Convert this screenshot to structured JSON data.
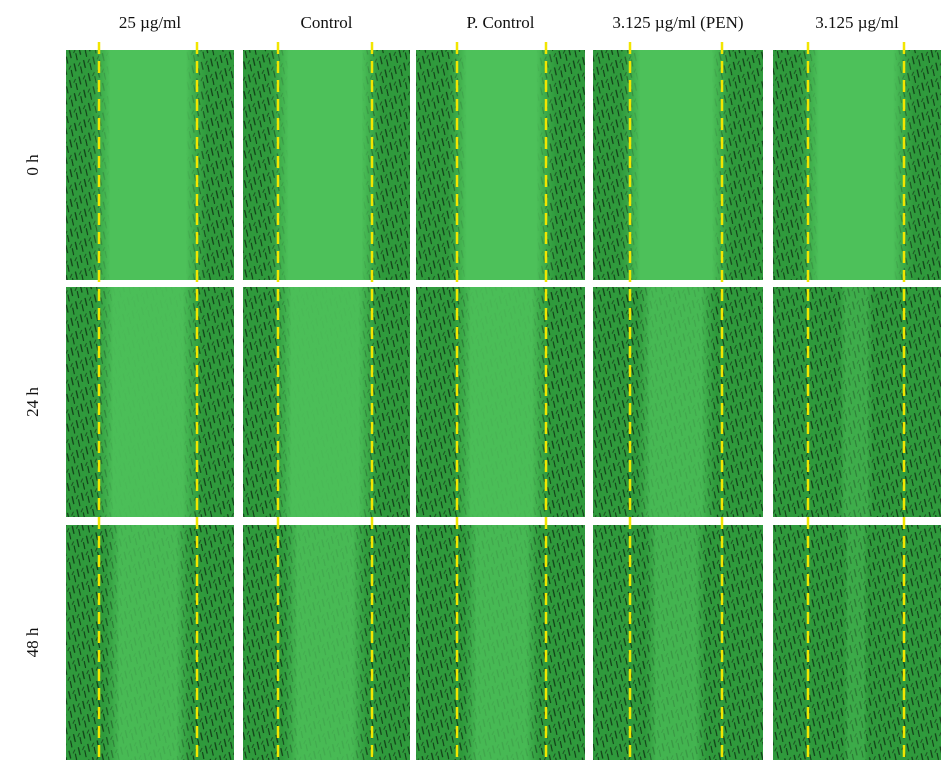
{
  "columns": [
    "25 µg/ml",
    "Control",
    "P. Control",
    "3.125 µg/ml (PEN)",
    "3.125 µg/ml"
  ],
  "rows": [
    "0 h",
    "24 h",
    "48 h"
  ]
}
